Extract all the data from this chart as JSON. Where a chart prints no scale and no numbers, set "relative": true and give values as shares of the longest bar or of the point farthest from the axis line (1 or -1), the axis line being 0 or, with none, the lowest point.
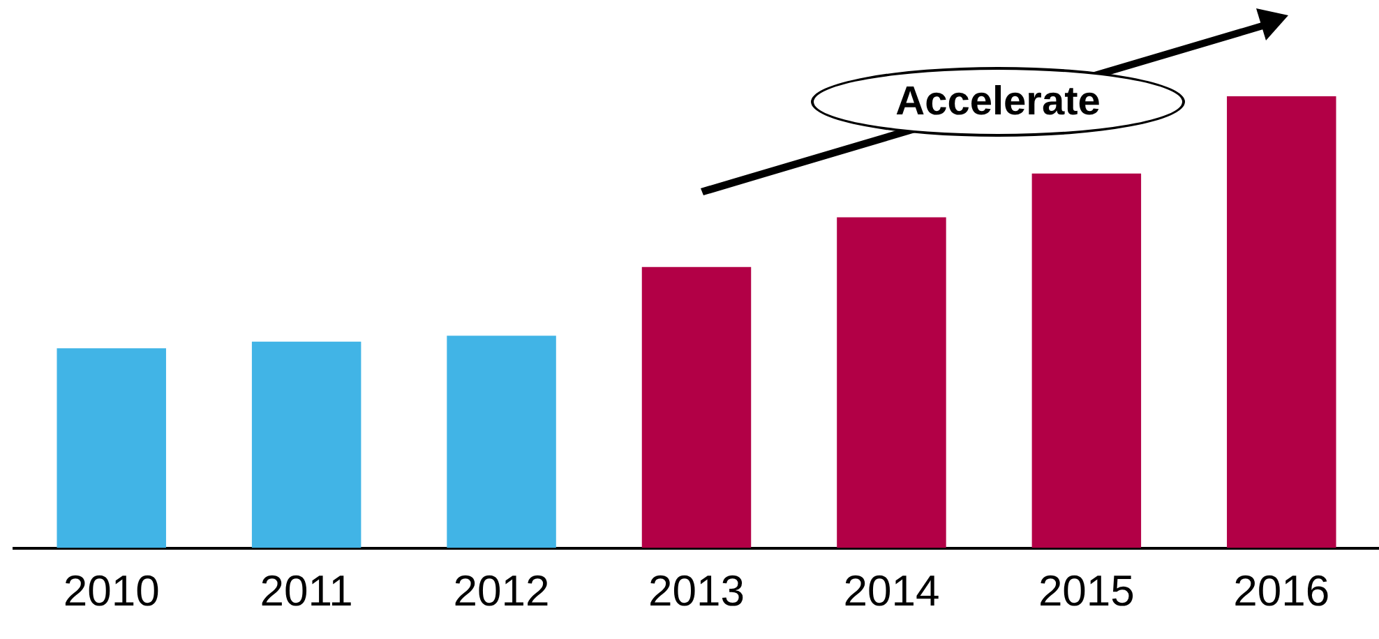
{
  "chart_data": {
    "type": "bar",
    "relative": true,
    "categories": [
      "2010",
      "2011",
      "2012",
      "2013",
      "2014",
      "2015",
      "2016"
    ],
    "values": [
      0.442,
      0.457,
      0.47,
      0.622,
      0.732,
      0.829,
      1
    ],
    "colors": [
      "#41b4e6",
      "#41b4e6",
      "#41b4e6",
      "#b20046",
      "#b20046",
      "#b20046",
      "#b20046"
    ],
    "annotations": [
      "Accelerate"
    ],
    "grid": false,
    "legend": false
  }
}
